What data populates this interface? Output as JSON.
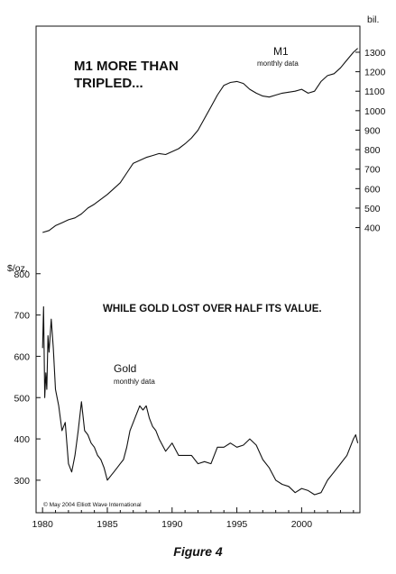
{
  "figure_caption": "Figure 4",
  "copyright": "© May 2004 Elliott Wave International",
  "chart_data": [
    {
      "type": "line",
      "series_name": "M1",
      "subtitle": "monthly data",
      "headline_lines": [
        "M1 MORE THAN",
        "TRIPLED..."
      ],
      "unit_label": "bil.",
      "y_ticks": [
        400,
        500,
        600,
        700,
        800,
        900,
        1000,
        1100,
        1200,
        1300
      ],
      "ylim": [
        250,
        1360
      ],
      "x": [
        1980.0,
        1980.5,
        1981.0,
        1981.5,
        1982.0,
        1982.5,
        1983.0,
        1983.5,
        1984.0,
        1984.5,
        1985.0,
        1985.5,
        1986.0,
        1986.5,
        1987.0,
        1987.5,
        1988.0,
        1988.5,
        1989.0,
        1989.5,
        1990.0,
        1990.5,
        1991.0,
        1991.5,
        1992.0,
        1992.5,
        1993.0,
        1993.5,
        1994.0,
        1994.5,
        1995.0,
        1995.5,
        1996.0,
        1996.5,
        1997.0,
        1997.5,
        1998.0,
        1998.5,
        1999.0,
        1999.5,
        2000.0,
        2000.5,
        2001.0,
        2001.5,
        2002.0,
        2002.5,
        2003.0,
        2003.5,
        2004.0,
        2004.33
      ],
      "values": [
        375,
        385,
        410,
        425,
        440,
        450,
        470,
        500,
        520,
        545,
        570,
        600,
        630,
        680,
        730,
        745,
        760,
        770,
        780,
        775,
        790,
        805,
        830,
        860,
        900,
        960,
        1020,
        1080,
        1130,
        1145,
        1150,
        1140,
        1110,
        1090,
        1075,
        1070,
        1080,
        1090,
        1095,
        1100,
        1110,
        1090,
        1100,
        1150,
        1180,
        1190,
        1220,
        1260,
        1300,
        1320
      ]
    },
    {
      "type": "line",
      "series_name": "Gold",
      "subtitle": "monthly data",
      "headline": "WHILE GOLD LOST OVER HALF ITS VALUE.",
      "unit_label": "$/oz.",
      "y_ticks": [
        300,
        400,
        500,
        600,
        700,
        800
      ],
      "ylim": [
        230,
        830
      ],
      "x": [
        1980.0,
        1980.08,
        1980.17,
        1980.25,
        1980.33,
        1980.42,
        1980.5,
        1980.67,
        1980.83,
        1981.0,
        1981.25,
        1981.5,
        1981.75,
        1982.0,
        1982.25,
        1982.5,
        1982.75,
        1983.0,
        1983.25,
        1983.5,
        1983.75,
        1984.0,
        1984.25,
        1984.5,
        1984.75,
        1985.0,
        1985.25,
        1985.5,
        1985.75,
        1986.0,
        1986.25,
        1986.5,
        1986.75,
        1987.0,
        1987.25,
        1987.5,
        1987.75,
        1988.0,
        1988.25,
        1988.5,
        1988.75,
        1989.0,
        1989.5,
        1990.0,
        1990.5,
        1991.0,
        1991.5,
        1992.0,
        1992.5,
        1993.0,
        1993.5,
        1994.0,
        1994.5,
        1995.0,
        1995.5,
        1996.0,
        1996.5,
        1997.0,
        1997.5,
        1998.0,
        1998.5,
        1999.0,
        1999.5,
        2000.0,
        2000.5,
        2001.0,
        2001.5,
        2002.0,
        2002.5,
        2003.0,
        2003.5,
        2004.0,
        2004.17,
        2004.33
      ],
      "values": [
        620,
        720,
        500,
        560,
        520,
        650,
        610,
        690,
        620,
        520,
        480,
        420,
        440,
        340,
        320,
        360,
        420,
        490,
        420,
        410,
        390,
        380,
        360,
        350,
        330,
        300,
        310,
        320,
        330,
        340,
        350,
        380,
        420,
        440,
        460,
        480,
        470,
        480,
        450,
        430,
        420,
        400,
        370,
        390,
        360,
        360,
        360,
        340,
        345,
        340,
        380,
        380,
        390,
        380,
        385,
        400,
        385,
        350,
        330,
        300,
        290,
        285,
        270,
        280,
        275,
        265,
        270,
        300,
        320,
        340,
        360,
        400,
        410,
        390
      ]
    }
  ],
  "x_axis": {
    "ticks": [
      1980,
      1985,
      1990,
      1995,
      2000
    ],
    "range": [
      1979.5,
      2004.5
    ]
  }
}
